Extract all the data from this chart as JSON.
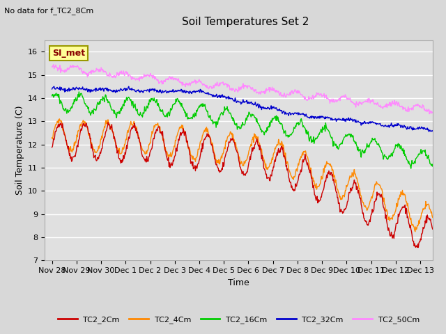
{
  "title": "Soil Temperatures Set 2",
  "top_left_text": "No data for f_TC2_8Cm",
  "xlabel": "Time",
  "ylabel": "Soil Temperature (C)",
  "ylim": [
    7.0,
    16.5
  ],
  "yticks": [
    7.0,
    8.0,
    9.0,
    10.0,
    11.0,
    12.0,
    13.0,
    14.0,
    15.0,
    16.0
  ],
  "background_color": "#d8d8d8",
  "plot_bg_color": "#e0e0e0",
  "grid_color": "#ffffff",
  "series_colors": {
    "TC2_2Cm": "#cc0000",
    "TC2_4Cm": "#ff8800",
    "TC2_16Cm": "#00cc00",
    "TC2_32Cm": "#0000cc",
    "TC2_50Cm": "#ff88ff"
  },
  "annotation_box": {
    "text": "SI_met",
    "facecolor": "#ffff99",
    "edgecolor": "#999900",
    "textcolor": "#880000"
  },
  "n_points": 720,
  "xtick_labels": [
    "Nov 28",
    "Nov 29",
    "Nov 30",
    "Dec 1",
    "Dec 2",
    "Dec 3",
    "Dec 4",
    "Dec 5",
    "Dec 6",
    "Dec 7",
    "Dec 8",
    "Dec 9",
    "Dec 10",
    "Dec 11",
    "Dec 12",
    "Dec 13"
  ],
  "xtick_positions": [
    0,
    1,
    2,
    3,
    4,
    5,
    6,
    7,
    8,
    9,
    10,
    11,
    12,
    13,
    14,
    15
  ],
  "figsize": [
    6.4,
    4.8
  ],
  "dpi": 100
}
